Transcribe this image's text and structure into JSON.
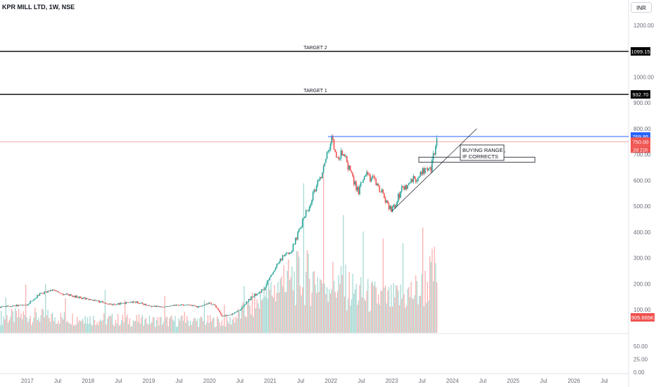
{
  "header": {
    "title": "KPR MILL LTD, 1W, NSE"
  },
  "currency": "INR",
  "colors": {
    "up": "#26a69a",
    "down": "#ef5350",
    "resistance": "#2962ff",
    "target": "#000000",
    "price_line": "#ef5350",
    "vol_up": "#a7d9d3",
    "vol_down": "#f7b0ae"
  },
  "chart_data": {
    "type": "candlestick",
    "title": "KPR MILL LTD, 1W, NSE",
    "price_axis": {
      "ticks": [
        "1200.00",
        "1000.00",
        "900.00",
        "800.00",
        "700.00",
        "600.00",
        "500.00",
        "400.00",
        "300.00",
        "200.00",
        "100.00"
      ],
      "tick_values": [
        1200,
        1000,
        900,
        800,
        700,
        600,
        500,
        400,
        300,
        200,
        100
      ]
    },
    "volume_axis": {
      "ticks": [
        "50.00",
        "25.00",
        "0.00"
      ],
      "tick_values": [
        50,
        25,
        0
      ]
    },
    "time_axis": {
      "ticks": [
        "2017",
        "Jul",
        "2018",
        "Jul",
        "2019",
        "Jul",
        "2020",
        "Jul",
        "2021",
        "Jul",
        "2022",
        "Jul",
        "2023",
        "Jul",
        "2024",
        "Jul",
        "2025",
        "Jul",
        "2026",
        "Jul"
      ],
      "tick_times": [
        2017.0,
        2017.5,
        2018.0,
        2018.5,
        2019.0,
        2019.5,
        2020.0,
        2020.5,
        2021.0,
        2021.5,
        2022.0,
        2022.5,
        2023.0,
        2023.5,
        2024.0,
        2024.5,
        2025.0,
        2025.5,
        2026.0,
        2026.5
      ]
    },
    "price_path": [
      [
        2016.55,
        110
      ],
      [
        2016.8,
        115
      ],
      [
        2017.0,
        120
      ],
      [
        2017.2,
        160
      ],
      [
        2017.4,
        175
      ],
      [
        2017.6,
        160
      ],
      [
        2017.8,
        150
      ],
      [
        2018.0,
        140
      ],
      [
        2018.2,
        130
      ],
      [
        2018.4,
        120
      ],
      [
        2018.6,
        125
      ],
      [
        2018.8,
        130
      ],
      [
        2019.0,
        115
      ],
      [
        2019.2,
        110
      ],
      [
        2019.4,
        115
      ],
      [
        2019.6,
        120
      ],
      [
        2019.8,
        110
      ],
      [
        2020.0,
        125
      ],
      [
        2020.1,
        115
      ],
      [
        2020.2,
        75
      ],
      [
        2020.35,
        80
      ],
      [
        2020.5,
        100
      ],
      [
        2020.7,
        150
      ],
      [
        2020.9,
        180
      ],
      [
        2021.0,
        230
      ],
      [
        2021.2,
        300
      ],
      [
        2021.35,
        330
      ],
      [
        2021.5,
        420
      ],
      [
        2021.7,
        540
      ],
      [
        2021.85,
        620
      ],
      [
        2021.95,
        720
      ],
      [
        2022.0,
        760
      ],
      [
        2022.1,
        690
      ],
      [
        2022.2,
        700
      ],
      [
        2022.3,
        650
      ],
      [
        2022.45,
        550
      ],
      [
        2022.55,
        620
      ],
      [
        2022.7,
        600
      ],
      [
        2022.85,
        550
      ],
      [
        2023.0,
        480
      ],
      [
        2023.15,
        560
      ],
      [
        2023.3,
        590
      ],
      [
        2023.45,
        620
      ],
      [
        2023.55,
        650
      ],
      [
        2023.65,
        650
      ],
      [
        2023.75,
        750
      ]
    ],
    "volume_path": [
      [
        2016.55,
        14
      ],
      [
        2017.0,
        16
      ],
      [
        2017.5,
        14
      ],
      [
        2018.0,
        13
      ],
      [
        2018.5,
        12
      ],
      [
        2019.0,
        11
      ],
      [
        2019.5,
        11
      ],
      [
        2020.0,
        11
      ],
      [
        2020.3,
        10
      ],
      [
        2020.8,
        28
      ],
      [
        2021.0,
        38
      ],
      [
        2021.5,
        52
      ],
      [
        2022.0,
        48
      ],
      [
        2022.5,
        35
      ],
      [
        2023.0,
        30
      ],
      [
        2023.5,
        40
      ],
      [
        2023.75,
        60
      ]
    ],
    "levels": [
      {
        "name": "TARGET 2",
        "label": "TARGET 2",
        "value": 1099.15,
        "tag": "1099.15"
      },
      {
        "name": "TARGET 1",
        "label": "TARGET 1",
        "value": 932.7,
        "tag": "932.70"
      },
      {
        "name": "resistance",
        "value": 769.95,
        "tag": "769.95"
      },
      {
        "name": "last-price",
        "value": 750.0,
        "tag": "750.00",
        "countdown": "2d 21h"
      }
    ],
    "annotation": {
      "line1": "BUYING RANGE ,",
      "line2": "IF CORRECTS",
      "zone_low": 670,
      "zone_high": 690
    },
    "trendline": {
      "from": [
        2023.0,
        480
      ],
      "to": [
        2024.4,
        800
      ]
    },
    "volume_tag": "905.665K"
  }
}
